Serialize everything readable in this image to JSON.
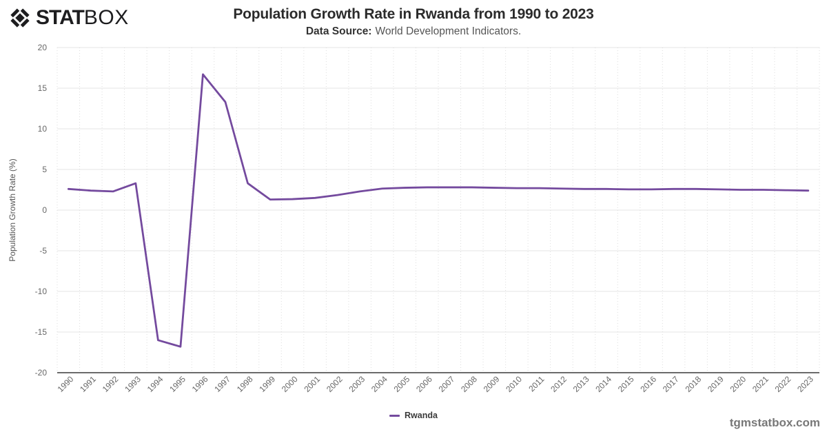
{
  "brand": {
    "logo_stat": "STAT",
    "logo_box": "BOX",
    "logo_icon": "diamond-statbox-icon",
    "watermark": "tgmstatbox.com"
  },
  "header": {
    "title": "Population Growth Rate in Rwanda from 1990 to 2023",
    "subtitle_label": "Data Source:",
    "subtitle_text": "World Development Indicators."
  },
  "legend": {
    "label": "Rwanda",
    "color": "#744a9e",
    "position": "bottom"
  },
  "chart_data": {
    "type": "line",
    "title": "Population Growth Rate in Rwanda from 1990 to 2023",
    "subtitle": "Data Source: World Development Indicators.",
    "xlabel": "",
    "ylabel": "Population Growth Rate (%)",
    "ylim": [
      -20,
      20
    ],
    "y_ticks": [
      20,
      15,
      10,
      5,
      0,
      -5,
      -10,
      -15,
      -20
    ],
    "grid": true,
    "legend_position": "bottom",
    "categories": [
      "1990",
      "1991",
      "1992",
      "1993",
      "1994",
      "1995",
      "1996",
      "1997",
      "1998",
      "1999",
      "2000",
      "2001",
      "2002",
      "2003",
      "2004",
      "2005",
      "2006",
      "2007",
      "2008",
      "2009",
      "2010",
      "2011",
      "2012",
      "2013",
      "2014",
      "2015",
      "2016",
      "2017",
      "2018",
      "2019",
      "2020",
      "2021",
      "2022",
      "2023"
    ],
    "series": [
      {
        "name": "Rwanda",
        "color": "#744a9e",
        "values": [
          2.6,
          2.4,
          2.3,
          3.3,
          -16.0,
          -16.8,
          16.7,
          13.3,
          3.3,
          1.3,
          1.35,
          1.5,
          1.85,
          2.3,
          2.65,
          2.75,
          2.8,
          2.8,
          2.8,
          2.75,
          2.7,
          2.7,
          2.65,
          2.6,
          2.6,
          2.55,
          2.55,
          2.6,
          2.6,
          2.55,
          2.5,
          2.5,
          2.45,
          2.4
        ]
      }
    ]
  }
}
